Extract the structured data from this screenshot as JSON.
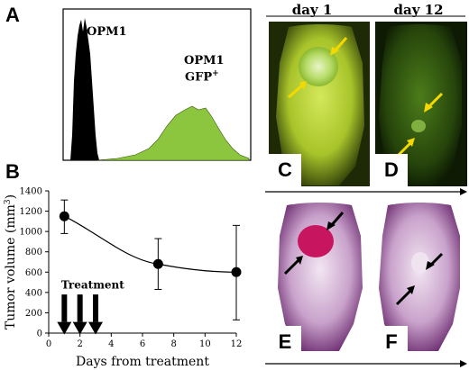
{
  "panels": {
    "a": "A",
    "b": "B",
    "c": "C",
    "d": "D",
    "e": "E",
    "f": "F"
  },
  "histogram": {
    "label_left": "OPM1",
    "label_right_line1": "OPM1",
    "label_right_line2": "GFP",
    "label_right_sup": "+",
    "colors": {
      "negative": "#000000",
      "positive": "#8cc63f"
    }
  },
  "days": {
    "left": "day 1",
    "right": "day 12"
  },
  "annotation": {
    "treatment": "Treatment"
  },
  "chart_data": {
    "type": "line",
    "xlabel": "Days from treatment",
    "ylabel": "Tumor volume (mm",
    "ylabel_sup": "3",
    "ylabel_end": ")",
    "xlim": [
      0,
      12
    ],
    "ylim": [
      0,
      1400
    ],
    "xticks": [
      0,
      2,
      4,
      6,
      8,
      10,
      12
    ],
    "yticks": [
      0,
      200,
      400,
      600,
      800,
      1000,
      1200,
      1400
    ],
    "points": [
      {
        "x": 1,
        "y": 1150,
        "err_low": 980,
        "err_high": 1310
      },
      {
        "x": 7,
        "y": 680,
        "err_low": 430,
        "err_high": 930
      },
      {
        "x": 12,
        "y": 600,
        "err_low": 130,
        "err_high": 1060
      }
    ],
    "treatment_days": [
      1,
      2,
      3
    ],
    "grid": false
  }
}
